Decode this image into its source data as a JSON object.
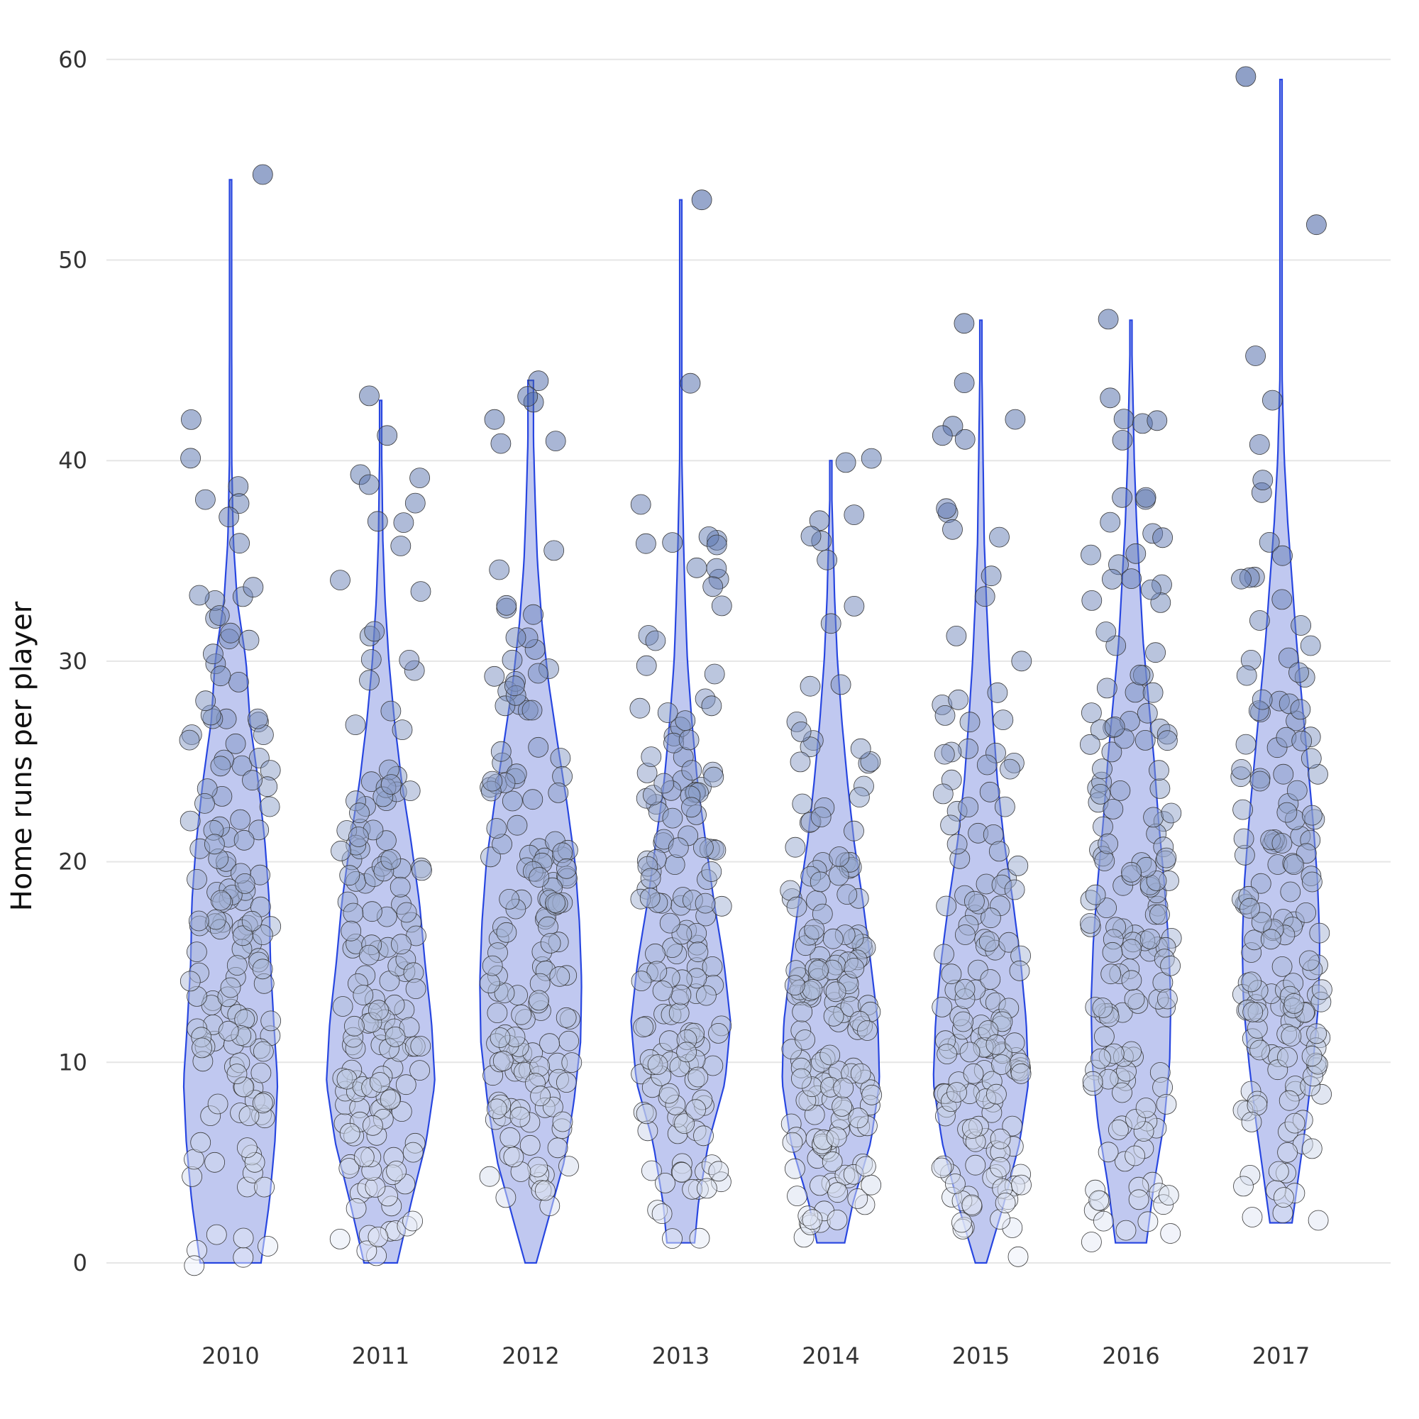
{
  "chart_data": {
    "type": "violin",
    "title": "",
    "xlabel": "",
    "ylabel": "Home runs per player",
    "ylim": [
      0,
      60
    ],
    "yticks": [
      0,
      10,
      20,
      30,
      40,
      50,
      60
    ],
    "categories": [
      "2010",
      "2011",
      "2012",
      "2013",
      "2014",
      "2015",
      "2016",
      "2017"
    ],
    "colors": {
      "violin_fill": "#c0c8f0",
      "violin_stroke": "#2846e0",
      "point_low": "#eef2fb",
      "point_high": "#1c3f8f"
    },
    "series": [
      {
        "category": "2010",
        "min": 0,
        "max": 54,
        "density": [
          [
            0,
            0.55
          ],
          [
            3,
            0.7
          ],
          [
            6,
            0.8
          ],
          [
            9,
            0.85
          ],
          [
            12,
            0.78
          ],
          [
            15,
            0.72
          ],
          [
            18,
            0.7
          ],
          [
            21,
            0.62
          ],
          [
            24,
            0.5
          ],
          [
            27,
            0.35
          ],
          [
            30,
            0.28
          ],
          [
            33,
            0.12
          ],
          [
            36,
            0.05
          ],
          [
            40,
            0.02
          ],
          [
            45,
            0.02
          ],
          [
            50,
            0.01
          ],
          [
            54,
            0.0
          ]
        ],
        "outliers": [
          54,
          42,
          39,
          38,
          38,
          37
        ],
        "n": 140
      },
      {
        "category": "2011",
        "min": 0,
        "max": 43,
        "density": [
          [
            0,
            0.3
          ],
          [
            3,
            0.55
          ],
          [
            6,
            0.82
          ],
          [
            9,
            0.98
          ],
          [
            12,
            0.92
          ],
          [
            15,
            0.8
          ],
          [
            18,
            0.7
          ],
          [
            21,
            0.55
          ],
          [
            24,
            0.38
          ],
          [
            27,
            0.25
          ],
          [
            30,
            0.15
          ],
          [
            33,
            0.08
          ],
          [
            36,
            0.04
          ],
          [
            40,
            0.02
          ],
          [
            43,
            0.0
          ]
        ],
        "outliers": [
          43,
          41,
          39,
          38,
          37,
          37
        ],
        "n": 150
      },
      {
        "category": "2012",
        "min": 0,
        "max": 44,
        "density": [
          [
            0,
            0.1
          ],
          [
            2,
            0.3
          ],
          [
            5,
            0.6
          ],
          [
            8,
            0.78
          ],
          [
            11,
            0.9
          ],
          [
            14,
            0.92
          ],
          [
            17,
            0.88
          ],
          [
            20,
            0.8
          ],
          [
            23,
            0.65
          ],
          [
            26,
            0.48
          ],
          [
            29,
            0.32
          ],
          [
            32,
            0.2
          ],
          [
            35,
            0.12
          ],
          [
            38,
            0.08
          ],
          [
            41,
            0.05
          ],
          [
            44,
            0.05
          ]
        ],
        "outliers": [
          44,
          43,
          43,
          42,
          41,
          41
        ],
        "n": 150
      },
      {
        "category": "2013",
        "min": 1,
        "max": 53,
        "density": [
          [
            1,
            0.25
          ],
          [
            3,
            0.32
          ],
          [
            6,
            0.5
          ],
          [
            9,
            0.8
          ],
          [
            12,
            0.9
          ],
          [
            15,
            0.78
          ],
          [
            18,
            0.6
          ],
          [
            21,
            0.45
          ],
          [
            24,
            0.3
          ],
          [
            27,
            0.2
          ],
          [
            30,
            0.12
          ],
          [
            33,
            0.08
          ],
          [
            36,
            0.05
          ],
          [
            40,
            0.02
          ],
          [
            45,
            0.01
          ],
          [
            53,
            0.0
          ]
        ],
        "outliers": [
          53,
          44,
          36,
          36,
          36,
          34
        ],
        "n": 150
      },
      {
        "category": "2014",
        "min": 1,
        "max": 40,
        "density": [
          [
            1,
            0.25
          ],
          [
            3,
            0.4
          ],
          [
            6,
            0.72
          ],
          [
            9,
            0.88
          ],
          [
            12,
            0.85
          ],
          [
            15,
            0.72
          ],
          [
            18,
            0.58
          ],
          [
            21,
            0.42
          ],
          [
            24,
            0.3
          ],
          [
            27,
            0.2
          ],
          [
            30,
            0.12
          ],
          [
            33,
            0.07
          ],
          [
            36,
            0.04
          ],
          [
            40,
            0.0
          ]
        ],
        "outliers": [
          40,
          40,
          37,
          37,
          36,
          35
        ],
        "n": 160
      },
      {
        "category": "2015",
        "min": 0,
        "max": 47,
        "density": [
          [
            0,
            0.1
          ],
          [
            3,
            0.42
          ],
          [
            6,
            0.7
          ],
          [
            9,
            0.86
          ],
          [
            12,
            0.82
          ],
          [
            15,
            0.72
          ],
          [
            18,
            0.58
          ],
          [
            21,
            0.42
          ],
          [
            24,
            0.3
          ],
          [
            27,
            0.22
          ],
          [
            30,
            0.15
          ],
          [
            33,
            0.1
          ],
          [
            36,
            0.06
          ],
          [
            40,
            0.04
          ],
          [
            44,
            0.02
          ],
          [
            47,
            0.0
          ]
        ],
        "outliers": [
          47,
          44,
          42,
          42,
          41,
          41
        ],
        "n": 150
      },
      {
        "category": "2016",
        "min": 1,
        "max": 47,
        "density": [
          [
            1,
            0.28
          ],
          [
            4,
            0.42
          ],
          [
            7,
            0.6
          ],
          [
            10,
            0.7
          ],
          [
            13,
            0.72
          ],
          [
            16,
            0.68
          ],
          [
            19,
            0.6
          ],
          [
            22,
            0.5
          ],
          [
            25,
            0.42
          ],
          [
            28,
            0.32
          ],
          [
            31,
            0.22
          ],
          [
            34,
            0.16
          ],
          [
            37,
            0.1
          ],
          [
            40,
            0.06
          ],
          [
            44,
            0.03
          ],
          [
            47,
            0.0
          ]
        ],
        "outliers": [
          47,
          43,
          42,
          42,
          42,
          41
        ],
        "n": 150
      },
      {
        "category": "2017",
        "min": 2,
        "max": 59,
        "density": [
          [
            2,
            0.2
          ],
          [
            4,
            0.3
          ],
          [
            7,
            0.45
          ],
          [
            10,
            0.58
          ],
          [
            13,
            0.68
          ],
          [
            16,
            0.7
          ],
          [
            19,
            0.66
          ],
          [
            22,
            0.58
          ],
          [
            25,
            0.48
          ],
          [
            28,
            0.38
          ],
          [
            31,
            0.28
          ],
          [
            34,
            0.2
          ],
          [
            37,
            0.12
          ],
          [
            40,
            0.06
          ],
          [
            44,
            0.02
          ],
          [
            50,
            0.01
          ],
          [
            59,
            0.0
          ]
        ],
        "outliers": [
          59,
          52,
          45,
          43,
          41,
          39
        ],
        "n": 150
      }
    ]
  }
}
